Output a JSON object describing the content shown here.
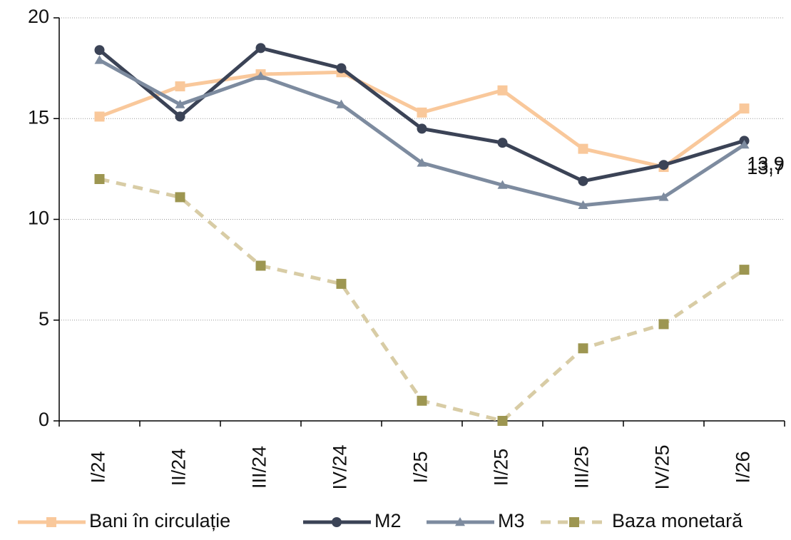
{
  "chart_data": {
    "type": "line",
    "categories": [
      "I/24",
      "II/24",
      "III/24",
      "IV/24",
      "I/25",
      "II/25",
      "III/25",
      "IV/25",
      "I/26"
    ],
    "series": [
      {
        "name": "Bani în circulație",
        "color": "#f9c89b",
        "marker": "square",
        "dashed": false,
        "values": [
          15.1,
          16.6,
          17.2,
          17.3,
          15.3,
          16.4,
          13.5,
          12.6,
          15.5
        ]
      },
      {
        "name": "M2",
        "color": "#3b4356",
        "marker": "circle",
        "dashed": false,
        "values": [
          18.4,
          15.1,
          18.5,
          17.5,
          14.5,
          13.8,
          11.9,
          12.7,
          13.9
        ],
        "value_labels": [
          null,
          null,
          null,
          null,
          null,
          null,
          null,
          null,
          "13,9"
        ]
      },
      {
        "name": "M3",
        "color": "#7d8b9f",
        "marker": "triangle",
        "dashed": false,
        "values": [
          17.9,
          15.7,
          17.1,
          15.7,
          12.8,
          11.7,
          10.7,
          11.1,
          13.7
        ],
        "value_labels": [
          null,
          null,
          null,
          null,
          null,
          null,
          null,
          null,
          "13,7"
        ]
      },
      {
        "name": "Baza monetară",
        "color": "#d8cca5",
        "marker_color": "#9d9651",
        "marker": "square",
        "dashed": true,
        "values": [
          12.0,
          11.1,
          7.7,
          6.8,
          1.0,
          0.0,
          3.6,
          4.8,
          7.5
        ]
      }
    ],
    "ylim": [
      0,
      20
    ],
    "yticks": [
      0,
      5,
      10,
      15,
      20
    ],
    "grid": true,
    "legend": "bottom"
  }
}
